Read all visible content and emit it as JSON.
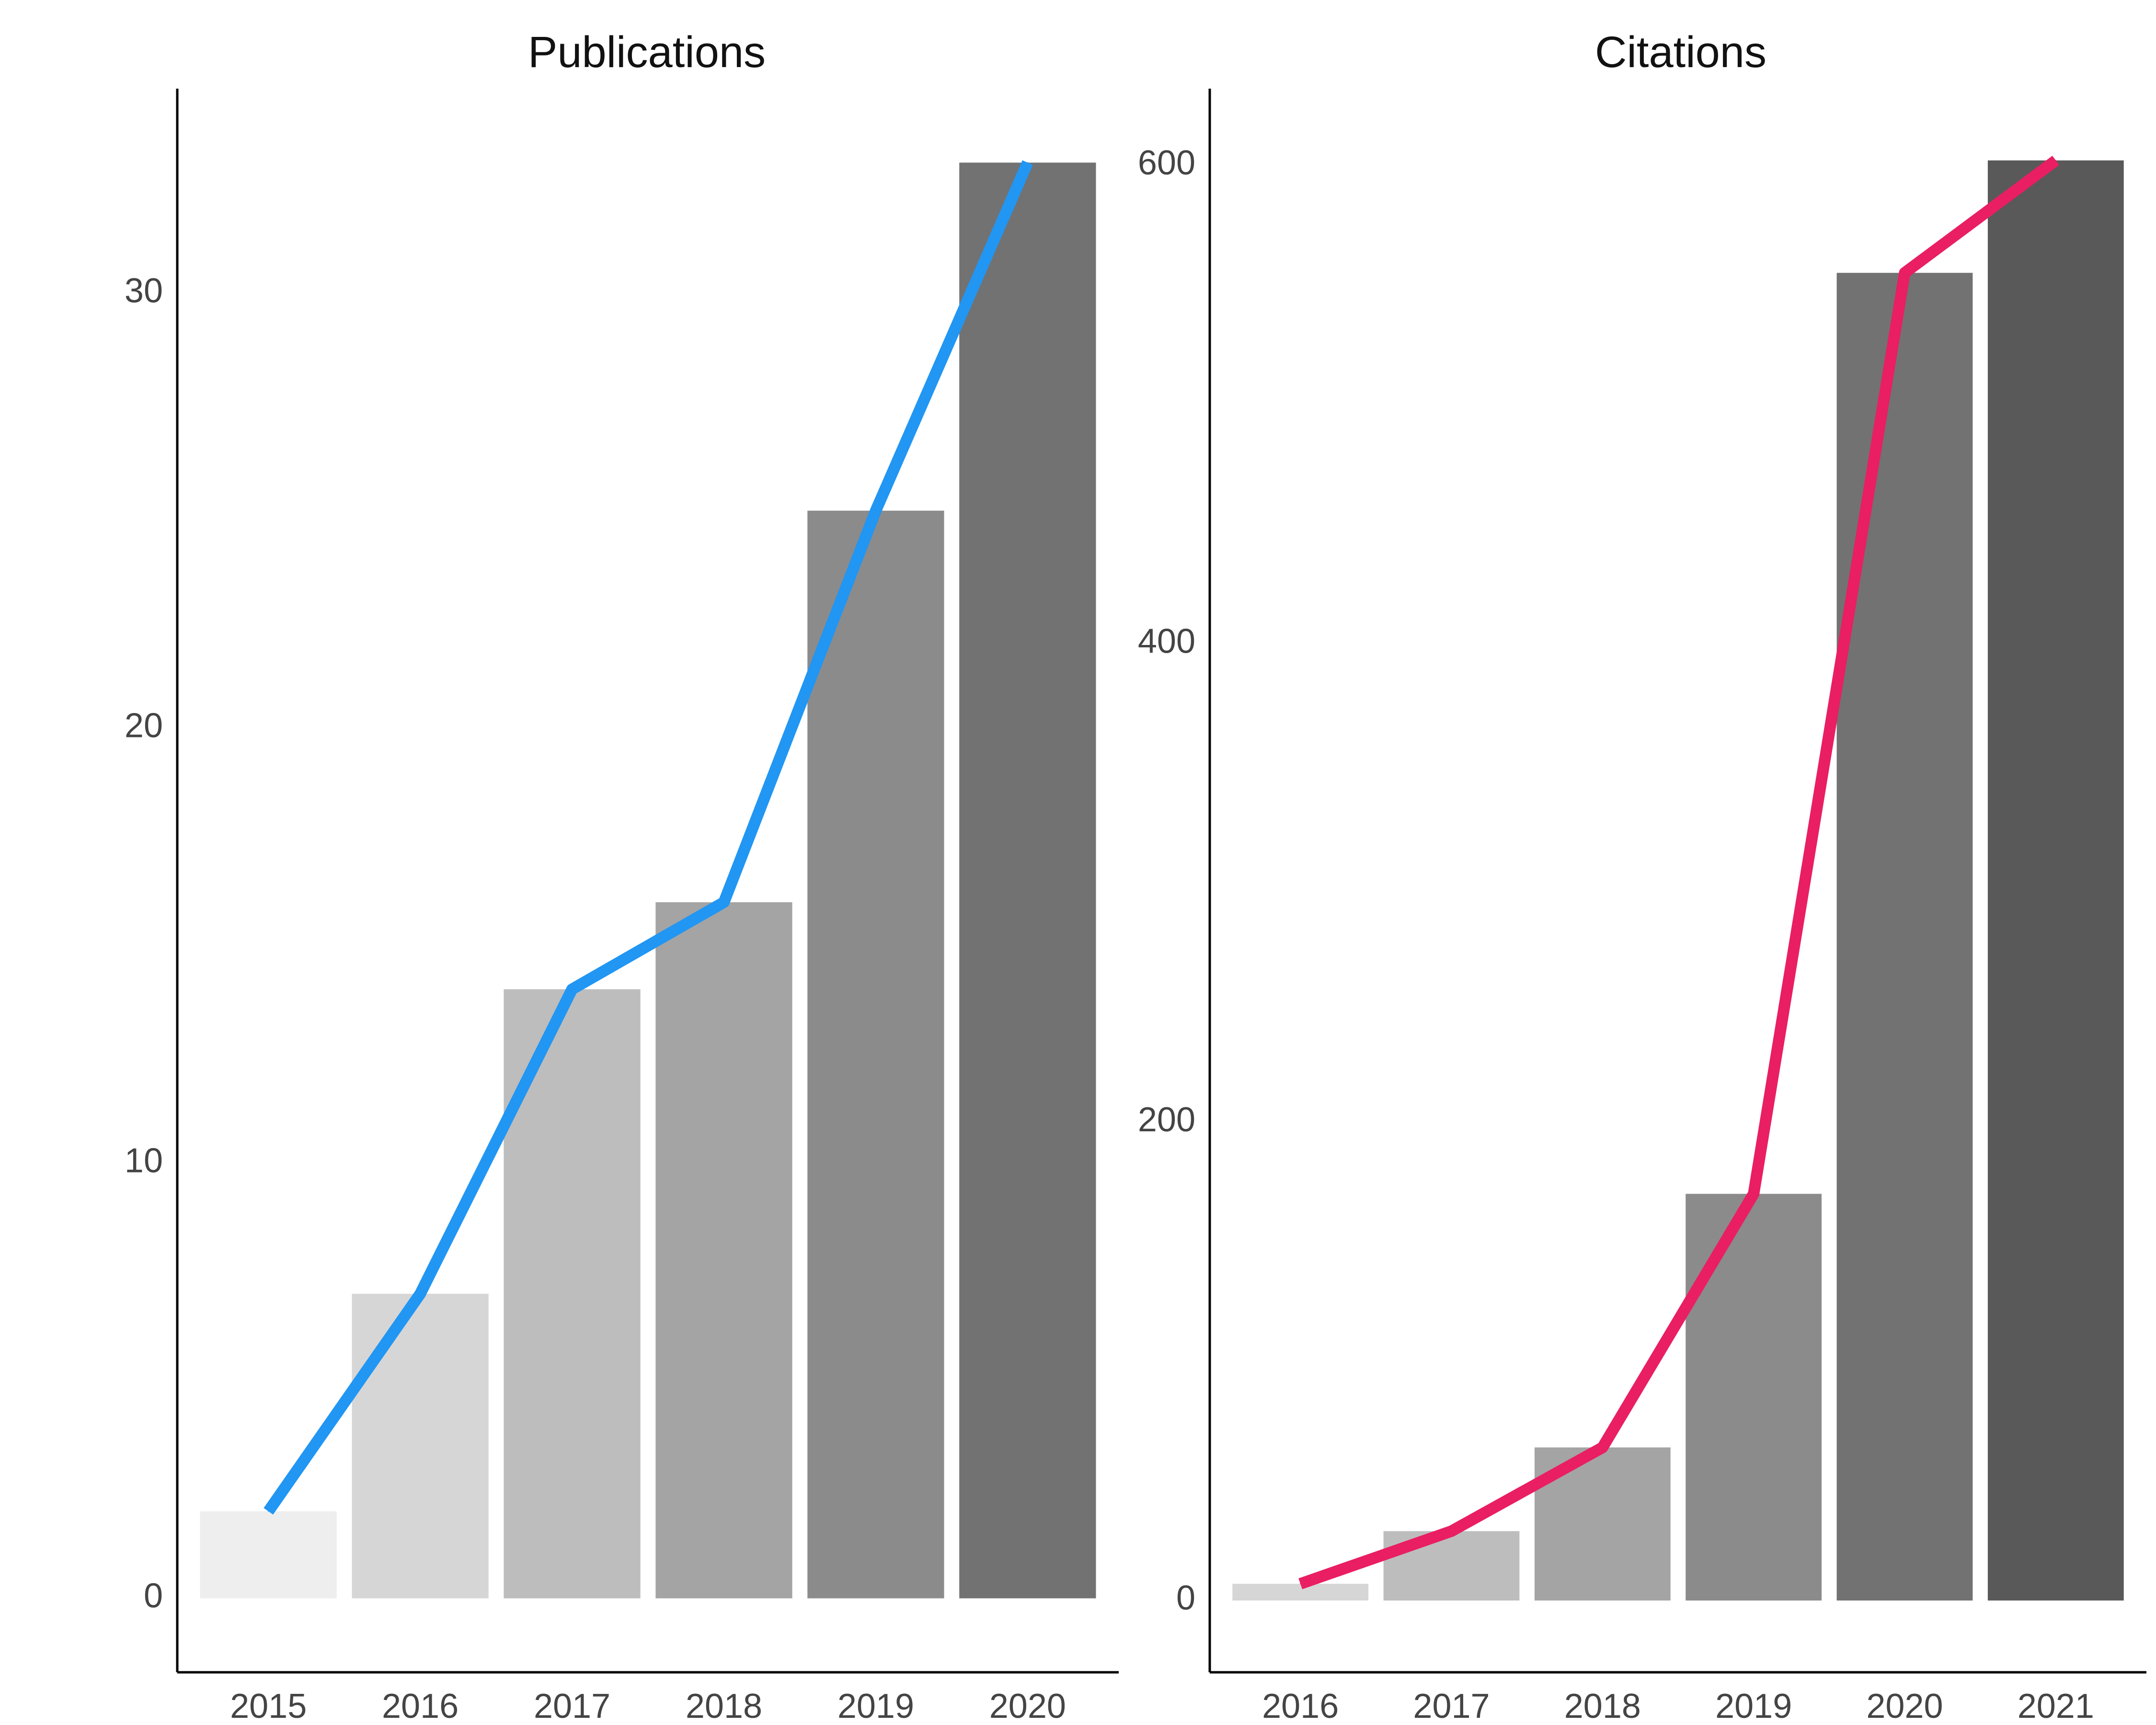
{
  "chart_data": [
    {
      "type": "bar",
      "title": "Publications",
      "categories": [
        "2015",
        "2016",
        "2017",
        "2018",
        "2019",
        "2020"
      ],
      "values": [
        2,
        7,
        14,
        16,
        25,
        33
      ],
      "series": [
        {
          "values": [
            2,
            7,
            14,
            16,
            25,
            33
          ],
          "kind": "bar"
        },
        {
          "values": [
            2,
            7,
            14,
            16,
            25,
            33
          ],
          "kind": "line",
          "color": "#2196F3"
        }
      ],
      "bar_colors": [
        "#EEEEEE",
        "#D6D6D6",
        "#BDBDBD",
        "#A4A4A4",
        "#8B8B8B",
        "#727272"
      ],
      "line_color": "#2196F3",
      "yticks": [
        0,
        10,
        20,
        30
      ],
      "ylim": [
        -1.7,
        34.7
      ],
      "xlabel": "",
      "ylabel": "",
      "grid": false,
      "legend": "none"
    },
    {
      "type": "bar",
      "title": "Citations",
      "categories": [
        "2016",
        "2017",
        "2018",
        "2019",
        "2020",
        "2021"
      ],
      "values": [
        7,
        29,
        64,
        170,
        555,
        602
      ],
      "series": [
        {
          "values": [
            7,
            29,
            64,
            170,
            555,
            602
          ],
          "kind": "bar"
        },
        {
          "values": [
            7,
            29,
            64,
            170,
            555,
            602
          ],
          "kind": "line",
          "color": "#E91E63"
        }
      ],
      "bar_colors": [
        "#D6D6D6",
        "#BDBDBD",
        "#A4A4A4",
        "#8B8B8B",
        "#727272",
        "#595959"
      ],
      "line_color": "#E91E63",
      "yticks": [
        0,
        200,
        400,
        600
      ],
      "ylim": [
        -30,
        632
      ],
      "xlabel": "",
      "ylabel": "",
      "grid": false,
      "legend": "none"
    }
  ]
}
